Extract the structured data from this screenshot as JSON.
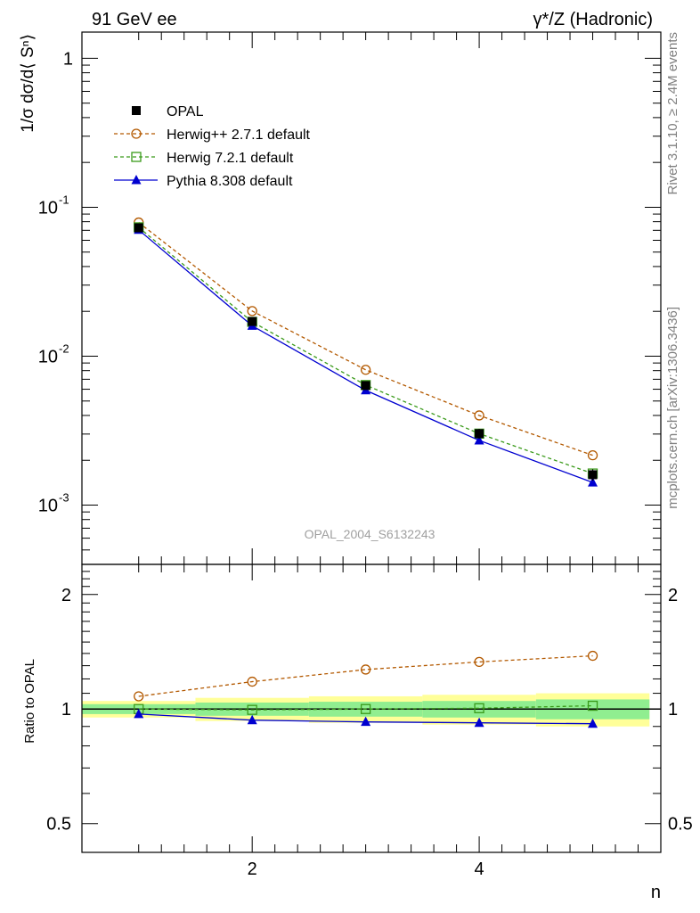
{
  "header": {
    "left": "91 GeV ee",
    "right": "γ*/Z (Hadronic)"
  },
  "side_text": {
    "rivet": "Rivet 3.1.10, ≥ 2.4M events",
    "mcplots": "mcplots.cern.ch [arXiv:1306.3436]"
  },
  "watermark": "OPAL_2004_S6132243",
  "colors": {
    "opal": "#000000",
    "herwigpp": "#b35900",
    "herwig7": "#3a9a1a",
    "pythia": "#0000d0",
    "band_inner": "#90ee90",
    "band_outer": "#ffff99",
    "watermark": "#a0a0a0"
  },
  "chart_data": [
    {
      "type": "line",
      "panel": "main",
      "ylabel": "1/σ dσ/d⟨ Sⁿ⟩",
      "yscale": "log",
      "ylim": [
        0.0004,
        1.5
      ],
      "xlim": [
        0.5,
        5.6
      ],
      "x": [
        1,
        2,
        3,
        4,
        5
      ],
      "y_tick_labels": [
        "1",
        "10⁻¹",
        "10⁻²",
        "10⁻³"
      ],
      "legend_position": "top-left",
      "series": [
        {
          "name": "OPAL",
          "key": "opal",
          "marker": "filled-square",
          "line": "none",
          "values": [
            0.0728,
            0.0171,
            0.00635,
            0.00302,
            0.0016
          ],
          "upper": [
            0.076,
            0.018,
            0.00675,
            0.00325,
            0.00174
          ],
          "lower": [
            0.0697,
            0.0162,
            0.00595,
            0.00279,
            0.00146
          ]
        },
        {
          "name": "Herwig++ 2.7.1 default",
          "key": "herwigpp",
          "marker": "open-circle",
          "line": "dashed",
          "values": [
            0.079,
            0.0201,
            0.0081,
            0.004,
            0.00216
          ]
        },
        {
          "name": "Herwig 7.2.1 default",
          "key": "herwig7",
          "marker": "open-square",
          "line": "dashed",
          "values": [
            0.0733,
            0.017,
            0.0064,
            0.00302,
            0.00163
          ]
        },
        {
          "name": "Pythia 8.308 default",
          "key": "pythia",
          "marker": "filled-triangle",
          "line": "solid",
          "values": [
            0.0705,
            0.016,
            0.0059,
            0.00272,
            0.00142
          ]
        }
      ]
    },
    {
      "type": "line",
      "panel": "ratio",
      "xlabel": "n",
      "ylabel": "Ratio to OPAL",
      "yscale": "log",
      "ylim": [
        0.42,
        2.4
      ],
      "x": [
        1,
        2,
        3,
        4,
        5
      ],
      "x_tick_labels": [
        "2",
        "4"
      ],
      "y_tick_labels": [
        "2",
        "1",
        "0.5"
      ],
      "bands": {
        "x_edges": [
          0.5,
          1.5,
          2.5,
          3.5,
          4.5,
          5.5
        ],
        "inner": [
          [
            0.97,
            1.03
          ],
          [
            0.96,
            1.04
          ],
          [
            0.955,
            1.045
          ],
          [
            0.95,
            1.05
          ],
          [
            0.94,
            1.06
          ]
        ],
        "outer": [
          [
            0.95,
            1.05
          ],
          [
            0.93,
            1.07
          ],
          [
            0.92,
            1.08
          ],
          [
            0.91,
            1.09
          ],
          [
            0.9,
            1.1
          ]
        ]
      },
      "series": [
        {
          "name": "Herwig++ 2.7.1 default",
          "key": "herwigpp",
          "marker": "open-circle",
          "line": "dashed",
          "values": [
            1.08,
            1.18,
            1.27,
            1.33,
            1.38
          ]
        },
        {
          "name": "Herwig 7.2.1 default",
          "key": "herwig7",
          "marker": "open-square",
          "line": "dashed",
          "values": [
            1.0,
            0.995,
            1.0,
            1.005,
            1.02
          ]
        },
        {
          "name": "Pythia 8.308 default",
          "key": "pythia",
          "marker": "filled-triangle",
          "line": "solid",
          "values": [
            0.97,
            0.935,
            0.925,
            0.92,
            0.915
          ]
        }
      ]
    }
  ]
}
